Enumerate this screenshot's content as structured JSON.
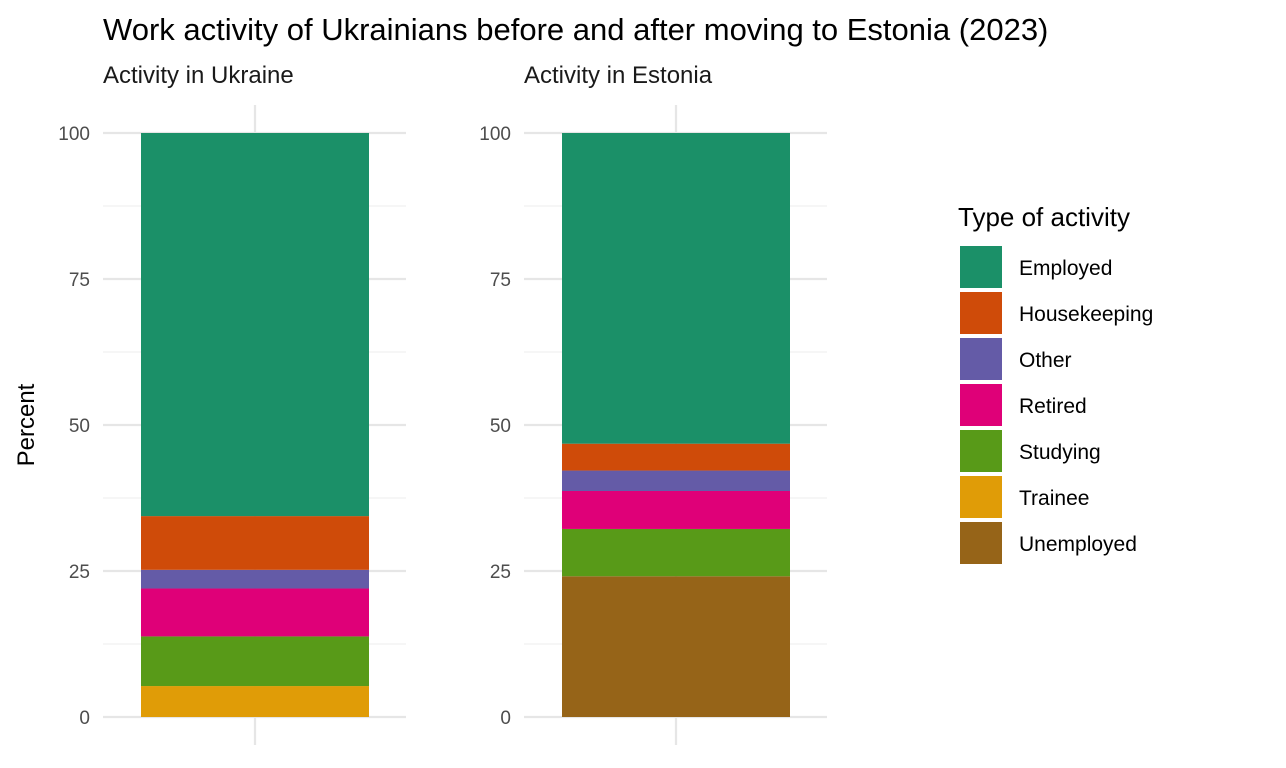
{
  "chart_data": {
    "type": "bar",
    "stacked": true,
    "title": "Work activity of Ukrainians before and after moving to Estonia (2023)",
    "ylabel": "Percent",
    "xlabel": "",
    "ylim": [
      0,
      100
    ],
    "yticks": [
      "0",
      "25",
      "50",
      "75",
      "100"
    ],
    "grid": true,
    "legend": {
      "title": "Type of activity",
      "position": "right",
      "entries": [
        {
          "label": "Employed",
          "color": "#1b9068"
        },
        {
          "label": "Housekeeping",
          "color": "#cf4b09"
        },
        {
          "label": "Other",
          "color": "#645ba7"
        },
        {
          "label": "Retired",
          "color": "#df0078"
        },
        {
          "label": "Studying",
          "color": "#589a18"
        },
        {
          "label": "Trainee",
          "color": "#e09c07"
        },
        {
          "label": "Unemployed",
          "color": "#966418"
        }
      ]
    },
    "facets": [
      {
        "title": "Activity in Ukraine",
        "stack": [
          {
            "category": "Trainee",
            "value": 5.3
          },
          {
            "category": "Studying",
            "value": 8.5
          },
          {
            "category": "Retired",
            "value": 8.2
          },
          {
            "category": "Other",
            "value": 3.2
          },
          {
            "category": "Housekeeping",
            "value": 9.2
          },
          {
            "category": "Employed",
            "value": 65.6
          }
        ]
      },
      {
        "title": "Activity in Estonia",
        "stack": [
          {
            "category": "Unemployed",
            "value": 24.1
          },
          {
            "category": "Studying",
            "value": 8.1
          },
          {
            "category": "Retired",
            "value": 6.5
          },
          {
            "category": "Other",
            "value": 3.5
          },
          {
            "category": "Housekeeping",
            "value": 4.6
          },
          {
            "category": "Employed",
            "value": 53.2
          }
        ]
      }
    ]
  }
}
